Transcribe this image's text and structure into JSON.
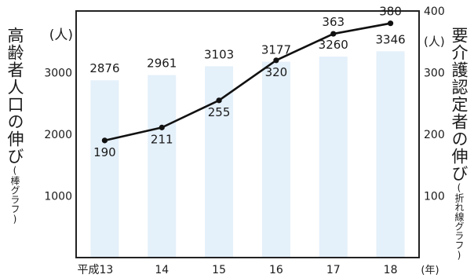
{
  "chart_data": {
    "type": "bar+line",
    "categories": [
      "平成13",
      "14",
      "15",
      "16",
      "17",
      "18"
    ],
    "x_unit": "(年)",
    "bar_series": {
      "name": "高齢者人口の伸び",
      "legend": "(棒グラフ)",
      "unit": "(人)",
      "values": [
        2876,
        2961,
        3103,
        3177,
        3260,
        3346
      ],
      "labels": [
        "2876",
        "2961",
        "3103",
        "3177",
        "3260",
        "3346"
      ],
      "axis_ticks": [
        1000,
        2000,
        3000
      ],
      "axis_tick_labels": [
        "1000",
        "2000",
        "3000"
      ],
      "ylim": [
        0,
        4000
      ]
    },
    "line_series": {
      "name": "要介護認定者の伸び",
      "legend": "(折れ線グラフ)",
      "unit": "(人)",
      "values": [
        190,
        211,
        255,
        320,
        363,
        380
      ],
      "labels": [
        "190",
        "211",
        "255",
        "320",
        "363",
        "380"
      ],
      "axis_ticks": [
        100,
        200,
        300,
        400
      ],
      "axis_tick_labels": [
        "100",
        "200",
        "300",
        "400"
      ],
      "ylim": [
        0,
        400
      ]
    },
    "colors": {
      "bar": "#e4f0fa",
      "line": "#111111",
      "frame": "#222222",
      "text": "#1a1a1a"
    },
    "grid": false
  }
}
